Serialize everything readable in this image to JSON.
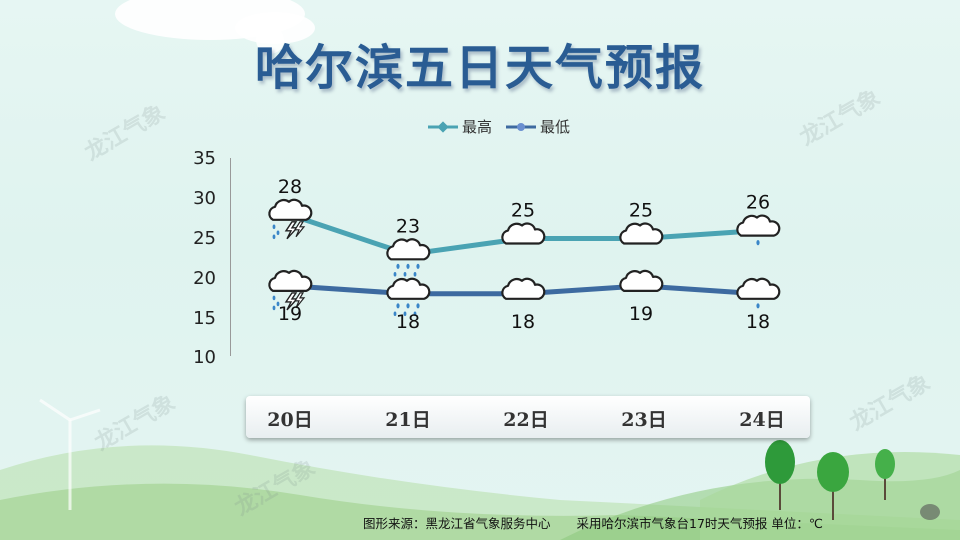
{
  "title": "哈尔滨五日天气预报",
  "watermark_text": "龙江气象",
  "footer": {
    "source": "图形来源：黑龙江省气象服务中心",
    "note": "采用哈尔滨市气象台17时天气预报 单位：℃"
  },
  "colors": {
    "high": "#4aa3b3",
    "low": "#3d6aa0",
    "title": "#2a5c93"
  },
  "chart_data": {
    "type": "line",
    "categories": [
      "20日",
      "21日",
      "22日",
      "23日",
      "24日"
    ],
    "series": [
      {
        "name": "最高",
        "values": [
          28,
          23,
          25,
          25,
          26
        ]
      },
      {
        "name": "最低",
        "values": [
          19,
          18,
          18,
          19,
          18
        ]
      }
    ],
    "ylim": [
      10,
      35
    ],
    "yticks": [
      "35",
      "30",
      "25",
      "20",
      "15",
      "10"
    ],
    "legend": "top-center",
    "weather_icons": {
      "high": [
        "thunderstorm-icon",
        "rain-icon",
        "cloudy-icon",
        "cloudy-icon",
        "light-rain-icon"
      ],
      "low": [
        "thunderstorm-icon",
        "rain-icon",
        "cloudy-icon",
        "cloudy-icon",
        "light-rain-icon"
      ]
    }
  }
}
